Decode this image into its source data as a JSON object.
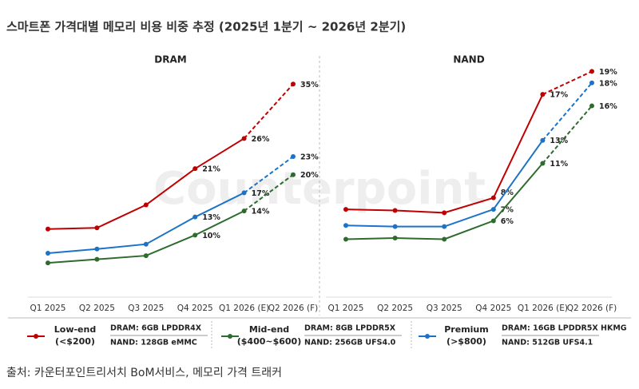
{
  "title": "스마트폰 가격대별 메모리 비용 비중 추정 (2025년 1분기 ~ 2026년 2분기)",
  "watermark": "Counterpoint",
  "source": "출처: 카운터포인트리서치 BoM서비스, 메모리 가격 트래커",
  "legend": [
    {
      "name": "Low-end",
      "price": "(<$200)",
      "color": "#c00000",
      "dram": "DRAM: 6GB LPDDR4X",
      "nand": "NAND: 128GB eMMC"
    },
    {
      "name": "Mid-end",
      "price": "($400~$600)",
      "color": "#2e6b2e",
      "dram": "DRAM: 8GB LPDDR5X",
      "nand": "NAND: 256GB UFS4.0"
    },
    {
      "name": "Premium",
      "price": "(>$800)",
      "color": "#1a73c8",
      "dram": "DRAM: 16GB LPDDR5X HKMG",
      "nand": "NAND: 512GB UFS4.1"
    }
  ],
  "chart_data": [
    {
      "type": "line",
      "title": "DRAM",
      "categories": [
        "Q1 2025",
        "Q2 2025",
        "Q3 2025",
        "Q4 2025",
        "Q1 2026 (E)",
        "Q2 2026 (F)"
      ],
      "ylim": [
        0,
        39
      ],
      "series": [
        {
          "color": "#c00000",
          "values": [
            11,
            11.2,
            15,
            21,
            26,
            35
          ],
          "value_labels": [
            null,
            null,
            null,
            "21%",
            "26%",
            "35%"
          ]
        },
        {
          "color": "#1a73c8",
          "values": [
            7,
            7.7,
            8.5,
            13,
            17,
            23
          ],
          "value_labels": [
            null,
            null,
            null,
            "13%",
            "17%",
            "23%"
          ]
        },
        {
          "color": "#2e6b2e",
          "values": [
            5.4,
            6,
            6.6,
            10,
            14,
            20
          ],
          "value_labels": [
            null,
            null,
            null,
            "10%",
            "14%",
            "20%"
          ]
        }
      ]
    },
    {
      "type": "line",
      "title": "NAND",
      "categories": [
        "Q1 2025",
        "Q2 2025",
        "Q3 2025",
        "Q4 2025",
        "Q1 2026 (E)",
        "Q2 2026 (F)"
      ],
      "ylim": [
        -0.5,
        20
      ],
      "series": [
        {
          "color": "#c00000",
          "values": [
            7,
            6.9,
            6.7,
            8,
            17,
            19
          ],
          "value_labels": [
            null,
            null,
            null,
            "8%",
            "17%",
            "19%"
          ]
        },
        {
          "color": "#1a73c8",
          "values": [
            5.6,
            5.5,
            5.5,
            7,
            13,
            18
          ],
          "value_labels": [
            null,
            null,
            null,
            "7%",
            "13%",
            "18%"
          ]
        },
        {
          "color": "#2e6b2e",
          "values": [
            4.4,
            4.5,
            4.4,
            6,
            11,
            16
          ],
          "value_labels": [
            null,
            null,
            null,
            "6%",
            "11%",
            "16%"
          ]
        }
      ]
    }
  ]
}
